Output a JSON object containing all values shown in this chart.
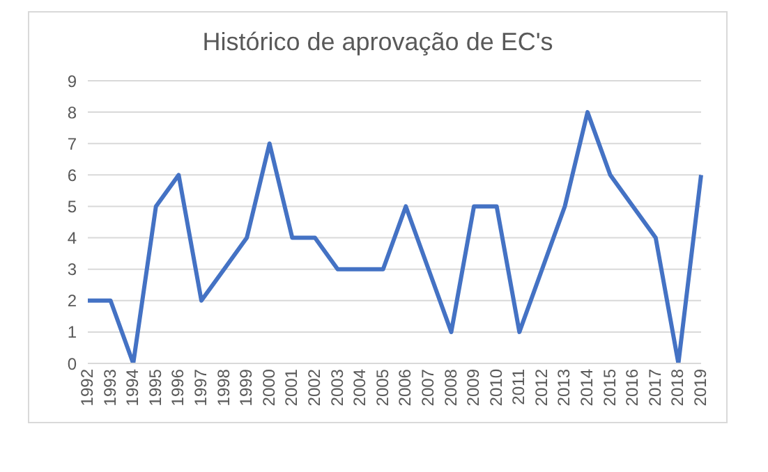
{
  "chart_data": {
    "type": "line",
    "title": "Histórico de aprovação de EC's",
    "categories": [
      "1992",
      "1993",
      "1994",
      "1995",
      "1996",
      "1997",
      "1998",
      "1999",
      "2000",
      "2001",
      "2002",
      "2003",
      "2004",
      "2005",
      "2006",
      "2007",
      "2008",
      "2009",
      "2010",
      "2011",
      "2012",
      "2013",
      "2014",
      "2015",
      "2016",
      "2017",
      "2018",
      "2019"
    ],
    "series": [
      {
        "color": "#4472c4",
        "values": [
          2,
          2,
          0,
          5,
          6,
          2,
          3,
          4,
          7,
          4,
          4,
          3,
          3,
          3,
          5,
          3,
          1,
          5,
          5,
          1,
          3,
          5,
          8,
          6,
          5,
          4,
          0,
          6
        ]
      }
    ],
    "ylim": [
      0,
      9
    ],
    "yticks": [
      0,
      1,
      2,
      3,
      4,
      5,
      6,
      7,
      8,
      9
    ],
    "grid": "y",
    "marker": "none",
    "line_style": "solid"
  }
}
